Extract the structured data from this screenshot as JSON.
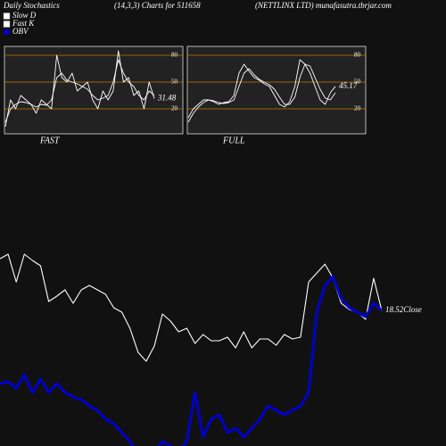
{
  "header": {
    "left": "Daily Stochastics",
    "center": "(14,3,3) Charts for 511658",
    "right": "(NETTLINX  LTD) munafasutra.tbrjar.com"
  },
  "chart_data": [
    {
      "type": "line",
      "title": "FAST",
      "ylim": [
        -8,
        90
      ],
      "yticks": [
        80,
        50,
        20
      ],
      "grid_color": "#c87800",
      "background": "#222222",
      "series": [
        {
          "name": "Slow D",
          "color": "#ffffff",
          "values": [
            5,
            20,
            25,
            28,
            27,
            25,
            22,
            25,
            24,
            30,
            55,
            60,
            52,
            50,
            48,
            45,
            42,
            35,
            30,
            32,
            35,
            50,
            75,
            60,
            50,
            45,
            35,
            30,
            40,
            35
          ]
        },
        {
          "name": "Fast K",
          "color": "#ffffff",
          "values": [
            0,
            30,
            20,
            35,
            30,
            25,
            15,
            30,
            25,
            20,
            80,
            55,
            50,
            60,
            40,
            45,
            50,
            30,
            20,
            40,
            30,
            40,
            85,
            50,
            55,
            35,
            40,
            20,
            50,
            31.48
          ],
          "value_labels": [
            null,
            null,
            null,
            null,
            null,
            null,
            null,
            null,
            null,
            null,
            null,
            null,
            null,
            null,
            null,
            null,
            null,
            null,
            null,
            null,
            null,
            null,
            null,
            null,
            null,
            null,
            null,
            null,
            null,
            "31.48"
          ]
        }
      ]
    },
    {
      "type": "line",
      "title": "FULL",
      "ylim": [
        -8,
        90
      ],
      "yticks": [
        80,
        50,
        20
      ],
      "grid_color": "#c87800",
      "background": "#222222",
      "series": [
        {
          "color": "#ffffff",
          "values": [
            5,
            15,
            22,
            27,
            30,
            29,
            27,
            26,
            27,
            30,
            45,
            60,
            65,
            58,
            53,
            50,
            47,
            42,
            33,
            25,
            25,
            33,
            55,
            70,
            68,
            55,
            42,
            32,
            30,
            38
          ]
        },
        {
          "color": "#ffffff",
          "values": [
            10,
            20,
            25,
            30,
            30,
            28,
            25,
            27,
            28,
            35,
            60,
            70,
            62,
            55,
            52,
            48,
            45,
            35,
            25,
            22,
            28,
            45,
            75,
            70,
            60,
            45,
            30,
            25,
            38,
            45.17
          ],
          "value_labels": [
            null,
            null,
            null,
            null,
            null,
            null,
            null,
            null,
            null,
            null,
            null,
            null,
            null,
            null,
            null,
            null,
            null,
            null,
            null,
            null,
            null,
            null,
            null,
            null,
            null,
            null,
            null,
            null,
            null,
            "45.17"
          ]
        }
      ]
    },
    {
      "type": "line",
      "ylim": [
        8.5,
        25
      ],
      "y2lim": [
        0,
        100
      ],
      "series": [
        {
          "color": "#ffffff",
          "values": [
            22.36,
            22.69,
            20.64,
            22.69,
            22.23,
            21.83,
            19.19,
            19.59,
            20.05,
            19.06,
            20.05,
            20.38,
            20.05,
            19.72,
            18.73,
            18.4,
            17.21,
            15.43,
            14.77,
            15.89,
            18.27,
            17.74,
            16.95,
            17.21,
            16.09,
            16.75,
            16.29,
            16.29,
            16.55,
            15.76,
            16.95,
            15.76,
            16.42,
            16.42,
            15.96,
            16.75,
            16.42,
            16.55,
            20.64,
            21.3,
            21.96,
            20.91,
            19.06,
            18.6,
            18.4,
            17.87,
            20.91,
            18.52
          ],
          "value_labels": [
            null,
            null,
            null,
            null,
            null,
            null,
            null,
            null,
            null,
            null,
            null,
            null,
            null,
            null,
            null,
            null,
            null,
            null,
            null,
            null,
            null,
            null,
            null,
            null,
            null,
            null,
            null,
            null,
            null,
            null,
            null,
            null,
            null,
            null,
            null,
            null,
            null,
            null,
            null,
            null,
            null,
            null,
            null,
            null,
            null,
            null,
            null,
            "18.52Close"
          ]
        },
        {
          "name": "OBV",
          "color": "#0000cc",
          "axis": "y2",
          "values": [
            28,
            28.8,
            26,
            32,
            24,
            30,
            24,
            28,
            24,
            22,
            20.8,
            18,
            16,
            12,
            10,
            6,
            2,
            -4,
            -6,
            -2,
            2,
            0,
            -2,
            2,
            24,
            4,
            12,
            14,
            6,
            8,
            4,
            8,
            12,
            18,
            16,
            14,
            16,
            18,
            24,
            60,
            72,
            76,
            66,
            62,
            60,
            58,
            64,
            60.8
          ]
        }
      ]
    }
  ]
}
